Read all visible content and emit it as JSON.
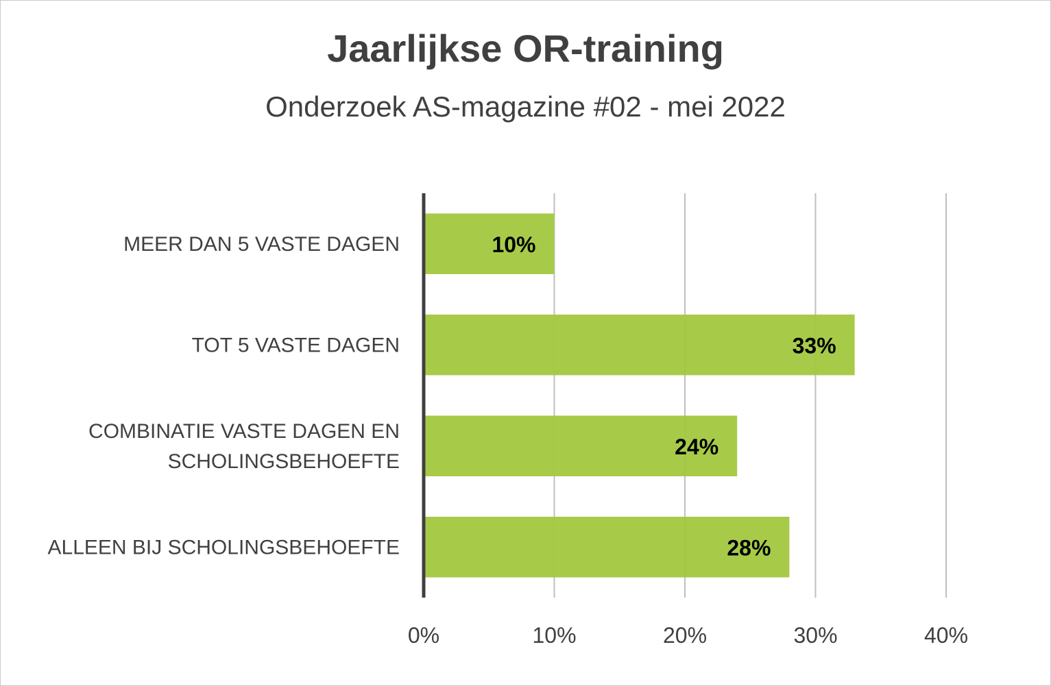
{
  "chart_data": {
    "type": "bar",
    "orientation": "horizontal",
    "title": "Jaarlijkse OR-training",
    "subtitle": "Onderzoek AS-magazine #02 - mei 2022",
    "categories": [
      [
        "MEER DAN 5 VASTE DAGEN"
      ],
      [
        "TOT 5 VASTE DAGEN"
      ],
      [
        "COMBINATIE VASTE DAGEN EN",
        "SCHOLINGSBEHOEFTE"
      ],
      [
        "ALLEEN BIJ SCHOLINGSBEHOEFTE"
      ]
    ],
    "values": [
      10,
      33,
      24,
      28
    ],
    "data_labels": [
      "10%",
      "33%",
      "24%",
      "28%"
    ],
    "xlim": [
      0,
      40
    ],
    "x_ticks": [
      0,
      10,
      20,
      30,
      40
    ],
    "x_tick_labels": [
      "0%",
      "10%",
      "20%",
      "30%",
      "40%"
    ],
    "grid": "vertical",
    "legend": "none",
    "colors": {
      "bar": "#a2c83f",
      "axis": "#404040",
      "grid": "#bfbfbf",
      "text": "#404040"
    }
  }
}
